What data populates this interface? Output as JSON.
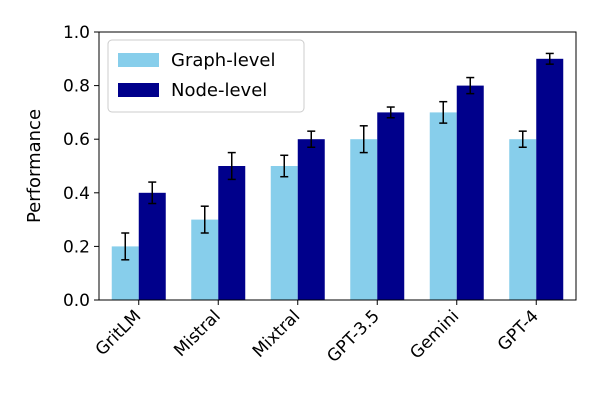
{
  "chart_data": {
    "type": "bar",
    "title": "",
    "xlabel": "",
    "ylabel": "Performance",
    "ylim": [
      0,
      1.0
    ],
    "yticks": [
      "0.0",
      "0.2",
      "0.4",
      "0.6",
      "0.8",
      "1.0"
    ],
    "categories": [
      "GritLM",
      "Mistral",
      "Mixtral",
      "GPT-3.5",
      "Gemini",
      "GPT-4"
    ],
    "series": [
      {
        "name": "Graph-level",
        "color": "#87ceeb",
        "values": [
          0.2,
          0.3,
          0.5,
          0.6,
          0.7,
          0.6
        ],
        "errors": [
          0.05,
          0.05,
          0.04,
          0.05,
          0.04,
          0.03
        ]
      },
      {
        "name": "Node-level",
        "color": "#00008b",
        "values": [
          0.4,
          0.5,
          0.6,
          0.7,
          0.8,
          0.9
        ],
        "errors": [
          0.04,
          0.05,
          0.03,
          0.02,
          0.03,
          0.02
        ]
      }
    ],
    "legend_position": "top-left",
    "grid": false
  }
}
